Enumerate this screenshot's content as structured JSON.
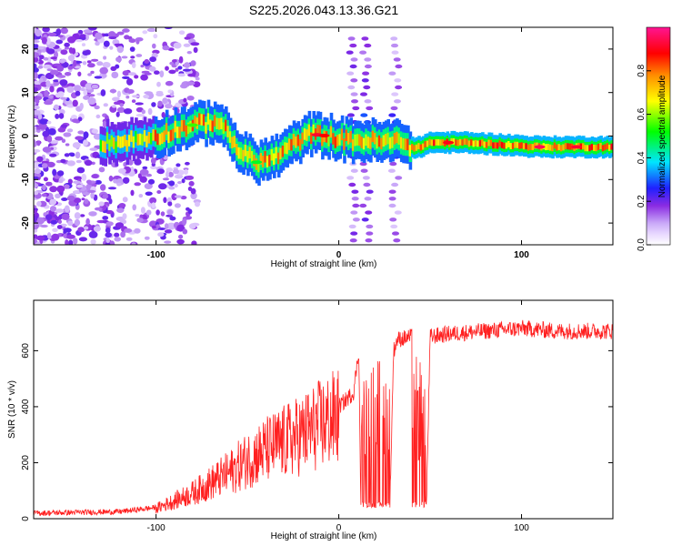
{
  "title": "S225.2026.043.13.36.G21",
  "chart_data": [
    {
      "type": "heatmap",
      "title": "S225.2026.043.13.36.G21",
      "xlabel": "Height of straight line (km)",
      "ylabel": "Frequency (Hz)",
      "xlim": [
        -167,
        150
      ],
      "ylim": [
        -25,
        25
      ],
      "xticks": [
        -100,
        0,
        100
      ],
      "yticks": [
        -20,
        -10,
        0,
        10,
        20
      ],
      "colorbar": {
        "label": "Normalized spectral amplitude",
        "range": [
          0,
          1
        ],
        "ticks": [
          0.0,
          0.2,
          0.4,
          0.6,
          0.8
        ],
        "colors": [
          "#ffffff",
          "#e8d8ff",
          "#c9a8f8",
          "#8a2be2",
          "#2020ff",
          "#00e5ff",
          "#00ff00",
          "#ffff00",
          "#ff8c00",
          "#ff0000",
          "#ff1493"
        ]
      },
      "dominant_ridge": {
        "x": [
          -120,
          -100,
          -80,
          -65,
          -55,
          -45,
          -35,
          -25,
          -15,
          -5,
          5,
          15,
          25,
          35,
          42,
          50,
          70,
          90,
          110,
          150
        ],
        "y": [
          -1.5,
          0,
          2.5,
          3.5,
          -3,
          -6,
          -5,
          -2,
          0.5,
          0,
          -1,
          -1,
          -1.5,
          -1,
          -3,
          -1.5,
          -1.5,
          -2,
          -2.5,
          -2.5
        ]
      }
    },
    {
      "type": "line",
      "xlabel": "Height of straight line (km)",
      "ylabel": "SNR (10 * v/v)",
      "xlim": [
        -167,
        150
      ],
      "ylim": [
        0,
        780
      ],
      "xticks": [
        -100,
        0,
        100
      ],
      "yticks": [
        0,
        200,
        400,
        600
      ],
      "series": [
        {
          "name": "SNR",
          "color": "#ff2020",
          "envelope": {
            "x": [
              -167,
              -120,
              -100,
              -80,
              -60,
              -50,
              -40,
              -30,
              -20,
              -10,
              0,
              8,
              11,
              12,
              20,
              28,
              30,
              32,
              40,
              42,
              48,
              50,
              60,
              80,
              100,
              120,
              150
            ],
            "y": [
              20,
              25,
              40,
              100,
              180,
              230,
              270,
              300,
              330,
              370,
              400,
              450,
              600,
              50,
              50,
              60,
              600,
              640,
              650,
              50,
              60,
              650,
              660,
              670,
              680,
              670,
              670
            ]
          }
        }
      ]
    }
  ]
}
